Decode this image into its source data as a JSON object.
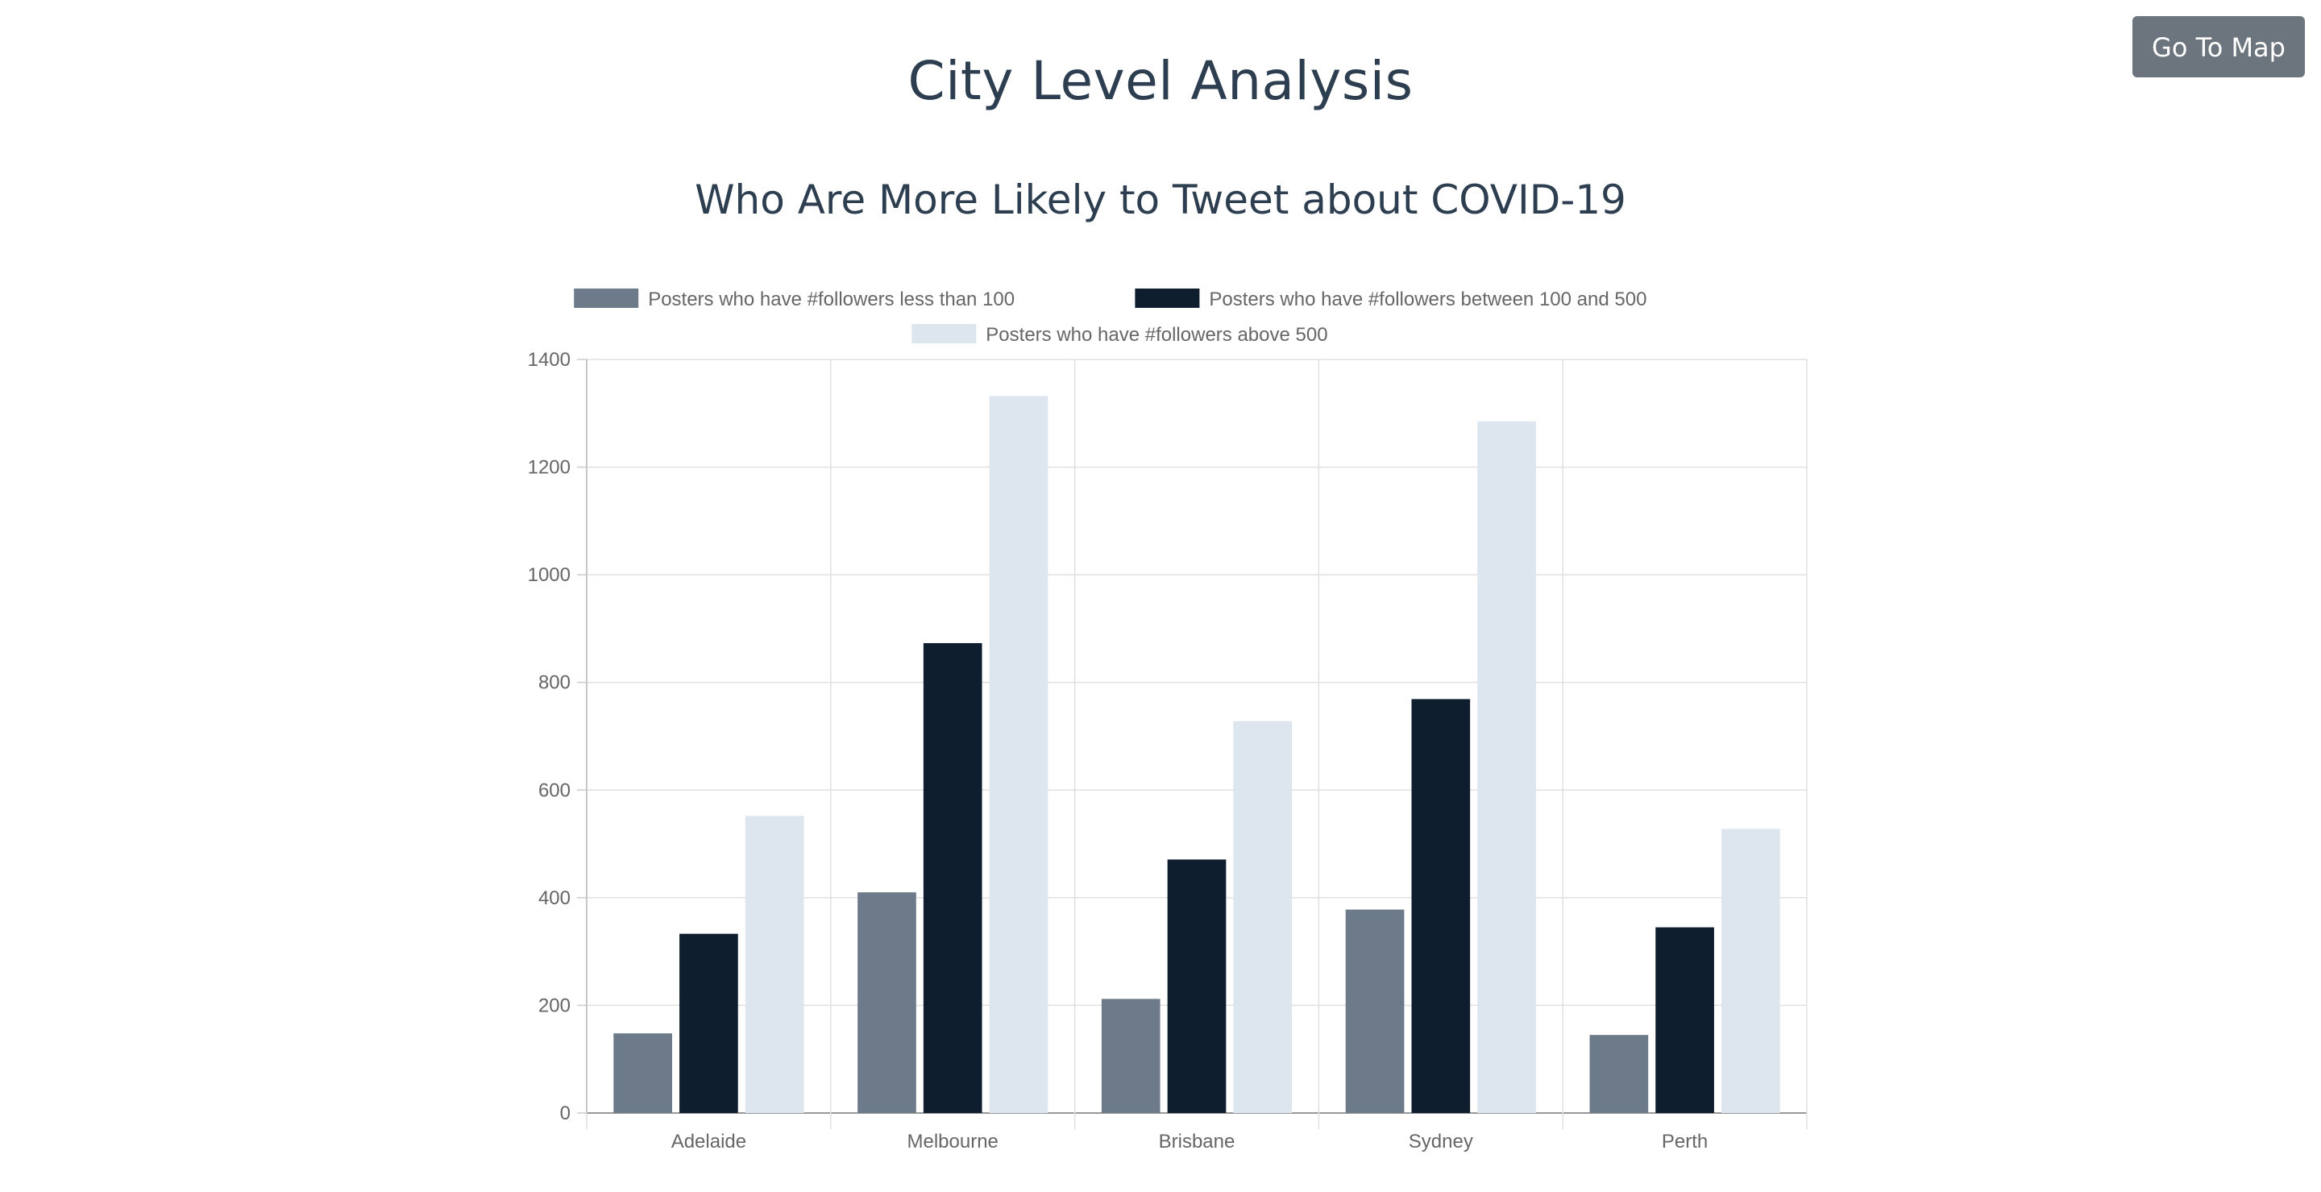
{
  "page": {
    "title": "City Level Analysis",
    "goto_map_label": "Go To Map"
  },
  "colors": {
    "series_low": "#6c7a89",
    "series_mid": "#0f1e2e",
    "series_high": "#dde5ef",
    "button_bg": "#6c757d",
    "title": "#2c3e50"
  },
  "chart_data": {
    "type": "bar",
    "title": "Who Are More Likely to Tweet about COVID-19",
    "categories": [
      "Adelaide",
      "Melbourne",
      "Brisbane",
      "Sydney",
      "Perth"
    ],
    "series": [
      {
        "name": "Posters who have #followers less than 100",
        "color": "#6c7a89",
        "values": [
          148,
          410,
          212,
          378,
          145
        ]
      },
      {
        "name": "Posters who have #followers between 100 and 500",
        "color": "#0f1e2e",
        "values": [
          333,
          873,
          471,
          769,
          345
        ]
      },
      {
        "name": "Posters who have #followers above 500",
        "color": "#dde5ef",
        "values": [
          552,
          1332,
          728,
          1285,
          528
        ]
      }
    ],
    "ylim": [
      0,
      1400
    ],
    "yticks": [
      "0",
      "200",
      "400",
      "600",
      "800",
      "1000",
      "1200",
      "1400"
    ],
    "grid": true,
    "legend_position": "top"
  }
}
